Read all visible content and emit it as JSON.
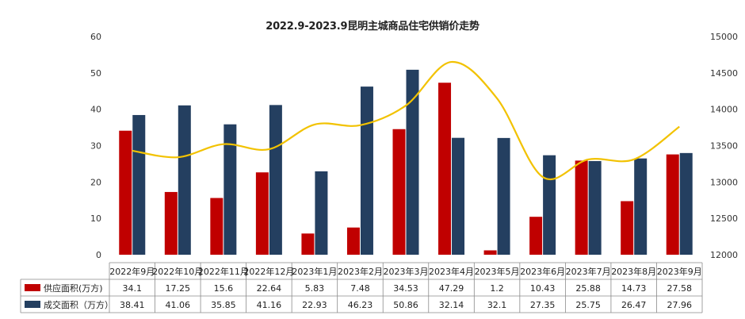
{
  "chart_data": {
    "type": "bar",
    "title": "2022.9-2023.9昆明主城商品住宅供销价走势",
    "categories": [
      "2022年9月",
      "2022年10月",
      "2022年11月",
      "2022年12月",
      "2023年1月",
      "2023年2月",
      "2023年3月",
      "2023年4月",
      "2023年5月",
      "2023年6月",
      "2023年7月",
      "2023年8月",
      "2023年9月"
    ],
    "series": [
      {
        "name": "供应面积(万方)",
        "color": "#c00000",
        "values": [
          34.1,
          17.25,
          15.6,
          22.64,
          5.83,
          7.48,
          34.53,
          47.29,
          1.2,
          10.43,
          25.88,
          14.73,
          27.58
        ]
      },
      {
        "name": "成交面积（万方）",
        "color": "#243f60",
        "values": [
          38.41,
          41.06,
          35.85,
          41.16,
          22.93,
          46.23,
          50.86,
          32.14,
          32.1,
          27.35,
          25.75,
          26.47,
          27.96
        ]
      }
    ],
    "line_series": {
      "name": "",
      "color": "#f2c200",
      "axis": "right",
      "values": [
        13430,
        13340,
        13520,
        13450,
        13790,
        13780,
        14050,
        14650,
        14150,
        13070,
        13310,
        13310,
        13760
      ]
    },
    "y_left": {
      "min": 0,
      "max": 60,
      "ticks": [
        "0",
        "10",
        "20",
        "30",
        "40",
        "50",
        "60"
      ]
    },
    "y_right": {
      "min": 12000,
      "max": 15000,
      "ticks": [
        "12000",
        "12500",
        "13000",
        "13500",
        "14000",
        "14500",
        "15000"
      ]
    },
    "grid": false,
    "legend": "data-table-bottom"
  }
}
